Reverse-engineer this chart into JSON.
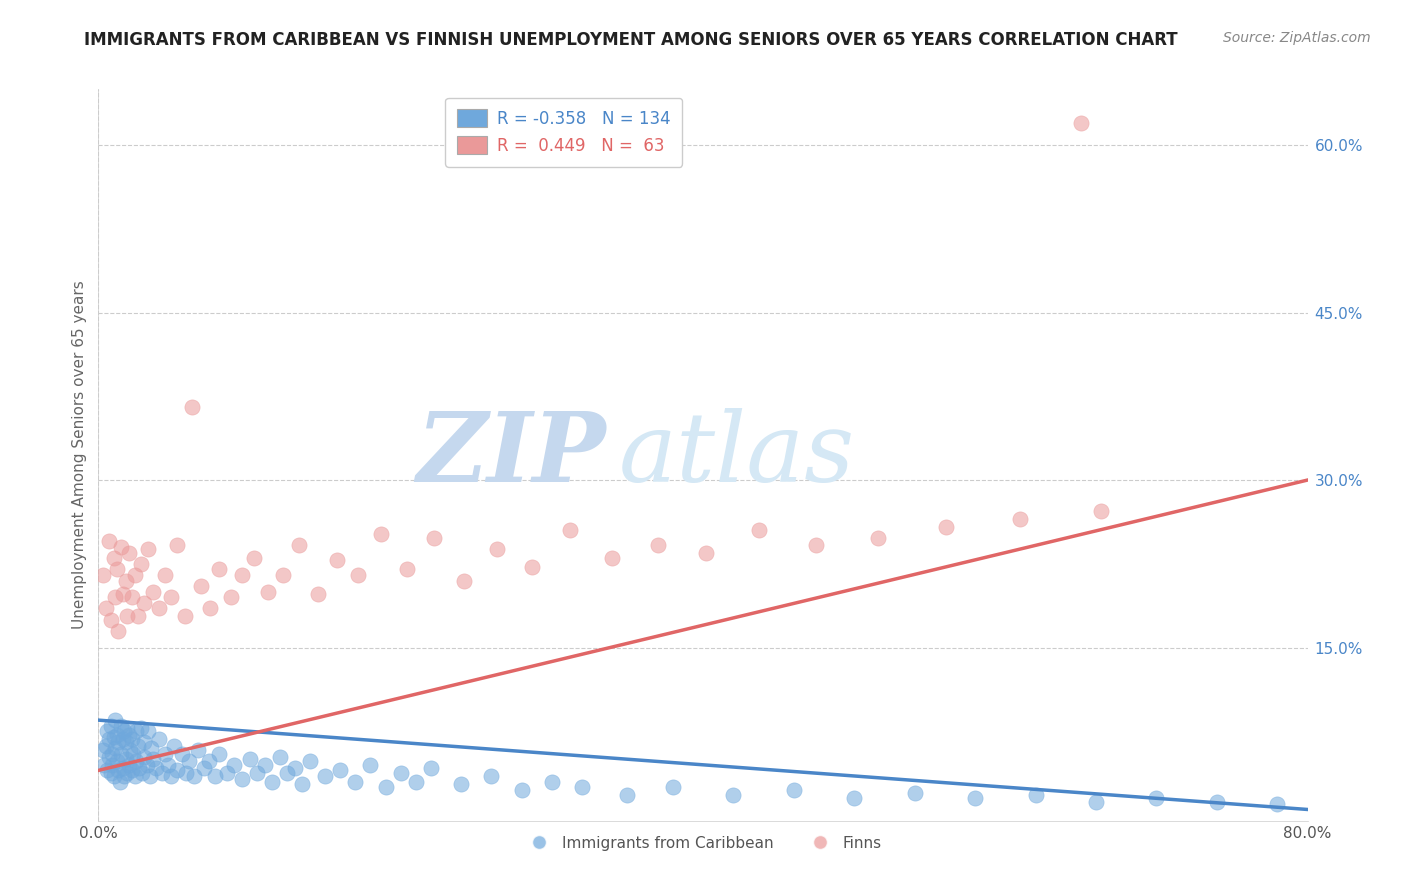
{
  "title": "IMMIGRANTS FROM CARIBBEAN VS FINNISH UNEMPLOYMENT AMONG SENIORS OVER 65 YEARS CORRELATION CHART",
  "source": "Source: ZipAtlas.com",
  "ylabel": "Unemployment Among Seniors over 65 years",
  "watermark_zip": "ZIP",
  "watermark_atlas": "atlas",
  "xmin": 0.0,
  "xmax": 0.8,
  "ymin": -0.005,
  "ymax": 0.65,
  "yticks_right": [
    0.15,
    0.3,
    0.45,
    0.6
  ],
  "yticklabels_right": [
    "15.0%",
    "30.0%",
    "45.0%",
    "60.0%"
  ],
  "legend_blue_r": "-0.358",
  "legend_blue_n": "134",
  "legend_pink_r": "0.449",
  "legend_pink_n": "63",
  "legend_blue_label": "Immigrants from Caribbean",
  "legend_pink_label": "Finns",
  "blue_color": "#6fa8dc",
  "pink_color": "#ea9999",
  "blue_line_color": "#4a86c8",
  "pink_line_color": "#e06666",
  "blue_scatter_x": [
    0.003,
    0.004,
    0.005,
    0.006,
    0.006,
    0.007,
    0.007,
    0.008,
    0.008,
    0.009,
    0.009,
    0.01,
    0.01,
    0.011,
    0.011,
    0.012,
    0.012,
    0.013,
    0.013,
    0.014,
    0.015,
    0.015,
    0.016,
    0.016,
    0.017,
    0.017,
    0.018,
    0.018,
    0.019,
    0.019,
    0.02,
    0.02,
    0.021,
    0.022,
    0.022,
    0.023,
    0.024,
    0.025,
    0.025,
    0.026,
    0.027,
    0.028,
    0.029,
    0.03,
    0.03,
    0.032,
    0.033,
    0.034,
    0.035,
    0.036,
    0.038,
    0.04,
    0.042,
    0.044,
    0.046,
    0.048,
    0.05,
    0.052,
    0.055,
    0.058,
    0.06,
    0.063,
    0.066,
    0.07,
    0.073,
    0.077,
    0.08,
    0.085,
    0.09,
    0.095,
    0.1,
    0.105,
    0.11,
    0.115,
    0.12,
    0.125,
    0.13,
    0.135,
    0.14,
    0.15,
    0.16,
    0.17,
    0.18,
    0.19,
    0.2,
    0.21,
    0.22,
    0.24,
    0.26,
    0.28,
    0.3,
    0.32,
    0.35,
    0.38,
    0.42,
    0.46,
    0.5,
    0.54,
    0.58,
    0.62,
    0.66,
    0.7,
    0.74,
    0.78
  ],
  "blue_scatter_y": [
    0.058,
    0.045,
    0.062,
    0.04,
    0.075,
    0.052,
    0.068,
    0.038,
    0.08,
    0.055,
    0.045,
    0.07,
    0.035,
    0.06,
    0.085,
    0.048,
    0.072,
    0.04,
    0.065,
    0.03,
    0.055,
    0.08,
    0.042,
    0.068,
    0.035,
    0.075,
    0.05,
    0.065,
    0.038,
    0.078,
    0.045,
    0.072,
    0.058,
    0.04,
    0.068,
    0.055,
    0.035,
    0.075,
    0.048,
    0.062,
    0.042,
    0.078,
    0.038,
    0.065,
    0.052,
    0.045,
    0.075,
    0.035,
    0.06,
    0.05,
    0.042,
    0.068,
    0.038,
    0.055,
    0.045,
    0.035,
    0.062,
    0.04,
    0.055,
    0.038,
    0.048,
    0.035,
    0.058,
    0.042,
    0.048,
    0.035,
    0.055,
    0.038,
    0.045,
    0.032,
    0.05,
    0.038,
    0.045,
    0.03,
    0.052,
    0.038,
    0.042,
    0.028,
    0.048,
    0.035,
    0.04,
    0.03,
    0.045,
    0.025,
    0.038,
    0.03,
    0.042,
    0.028,
    0.035,
    0.022,
    0.03,
    0.025,
    0.018,
    0.025,
    0.018,
    0.022,
    0.015,
    0.02,
    0.015,
    0.018,
    0.012,
    0.015,
    0.012,
    0.01
  ],
  "pink_scatter_x": [
    0.003,
    0.005,
    0.007,
    0.008,
    0.01,
    0.011,
    0.012,
    0.013,
    0.015,
    0.016,
    0.018,
    0.019,
    0.02,
    0.022,
    0.024,
    0.026,
    0.028,
    0.03,
    0.033,
    0.036,
    0.04,
    0.044,
    0.048,
    0.052,
    0.057,
    0.062,
    0.068,
    0.074,
    0.08,
    0.088,
    0.095,
    0.103,
    0.112,
    0.122,
    0.133,
    0.145,
    0.158,
    0.172,
    0.187,
    0.204,
    0.222,
    0.242,
    0.264,
    0.287,
    0.312,
    0.34,
    0.37,
    0.402,
    0.437,
    0.475,
    0.516,
    0.561,
    0.61,
    0.663
  ],
  "pink_scatter_y": [
    0.215,
    0.185,
    0.245,
    0.175,
    0.23,
    0.195,
    0.22,
    0.165,
    0.24,
    0.198,
    0.21,
    0.178,
    0.235,
    0.195,
    0.215,
    0.178,
    0.225,
    0.19,
    0.238,
    0.2,
    0.185,
    0.215,
    0.195,
    0.242,
    0.178,
    0.365,
    0.205,
    0.185,
    0.22,
    0.195,
    0.215,
    0.23,
    0.2,
    0.215,
    0.242,
    0.198,
    0.228,
    0.215,
    0.252,
    0.22,
    0.248,
    0.21,
    0.238,
    0.222,
    0.255,
    0.23,
    0.242,
    0.235,
    0.255,
    0.242,
    0.248,
    0.258,
    0.265,
    0.272
  ],
  "pink_extra_x": [
    0.65
  ],
  "pink_extra_y": [
    0.62
  ],
  "blue_trend_x0": 0.0,
  "blue_trend_y0": 0.085,
  "blue_trend_x1": 0.8,
  "blue_trend_y1": 0.005,
  "pink_trend_x0": 0.0,
  "pink_trend_y0": 0.04,
  "pink_trend_x1": 0.8,
  "pink_trend_y1": 0.3,
  "grid_color": "#cccccc",
  "background_color": "#ffffff",
  "title_fontsize": 12,
  "source_fontsize": 10,
  "watermark_fontsize": 70,
  "watermark_color_zip": "#c5d8ee",
  "watermark_color_atlas": "#d5e8f5"
}
